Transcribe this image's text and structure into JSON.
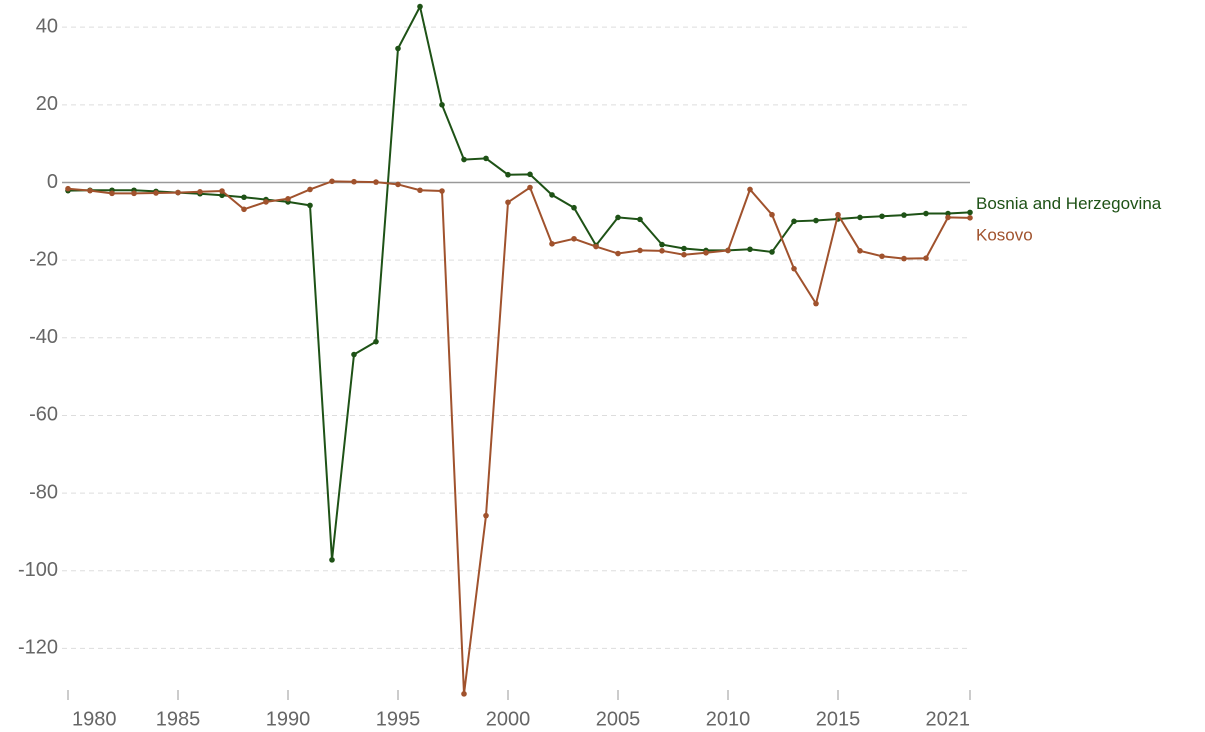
{
  "chart_data": {
    "type": "line",
    "x": [
      1980,
      1981,
      1982,
      1983,
      1984,
      1985,
      1986,
      1987,
      1988,
      1989,
      1990,
      1991,
      1992,
      1993,
      1994,
      1995,
      1996,
      1997,
      1998,
      1999,
      2000,
      2001,
      2002,
      2003,
      2004,
      2005,
      2006,
      2007,
      2008,
      2009,
      2010,
      2011,
      2012,
      2013,
      2014,
      2015,
      2016,
      2017,
      2018,
      2019,
      2020,
      2021
    ],
    "series": [
      {
        "name": "Bosnia and Herzegovina",
        "color": "#1e5216",
        "values": [
          -2.1,
          -2,
          -2,
          -2,
          -2.3,
          -2.6,
          -2.9,
          -3.3,
          -3.8,
          -4.4,
          -5,
          -5.9,
          -97.2,
          -44.3,
          -41,
          34.5,
          45.3,
          20,
          5.9,
          6.2,
          2,
          2.1,
          -3.2,
          -6.5,
          -16.2,
          -9,
          -9.5,
          -16,
          -17,
          -17.5,
          -17.5,
          -17.2,
          -17.9,
          -10,
          -9.8,
          -9.4,
          -9,
          -8.7,
          -8.4,
          -8,
          -8,
          -7.7
        ]
      },
      {
        "name": "Kosovo",
        "color": "#a0522d",
        "values": [
          -1.6,
          -2.1,
          -2.8,
          -2.8,
          -2.7,
          -2.6,
          -2.4,
          -2.2,
          -6.9,
          -5,
          -4.2,
          -1.8,
          0.3,
          0.2,
          0.1,
          -0.5,
          -2,
          -2.2,
          -131.7,
          -85.8,
          -5.1,
          -1.3,
          -15.8,
          -14.5,
          -16.5,
          -18.3,
          -17.5,
          -17.6,
          -18.6,
          -18.1,
          -17.5,
          -1.8,
          -8.3,
          -22.2,
          -31.2,
          -8.3,
          -17.6,
          -19,
          -19.6,
          -19.5,
          -9,
          -9.1
        ]
      }
    ],
    "xlim": [
      1980,
      2021
    ],
    "xticks": [
      1980,
      1985,
      1990,
      1995,
      2000,
      2005,
      2010,
      2015,
      2021
    ],
    "ylim": [
      -132,
      47
    ],
    "yticks": [
      -120,
      -100,
      -80,
      -60,
      -40,
      -20,
      0,
      20,
      40
    ],
    "grid": true
  }
}
